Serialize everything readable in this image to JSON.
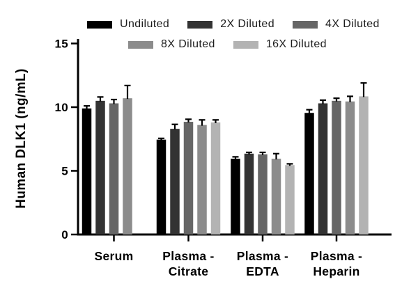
{
  "figure": {
    "background": "#ffffff",
    "axis_color": "#000000"
  },
  "legend": {
    "rows": [
      [
        "Undiluted",
        "2X Diluted",
        "4X Diluted"
      ],
      [
        "8X Diluted",
        "16X Diluted"
      ]
    ]
  },
  "chart_data": {
    "type": "bar",
    "title": "",
    "xlabel": "",
    "ylabel": "Human DLK1 (ng/mL)",
    "ylim": [
      0,
      15
    ],
    "yticks": [
      0,
      5,
      10,
      15
    ],
    "ytick_labels": [
      "0",
      "5",
      "10",
      "15"
    ],
    "grid": false,
    "legend_position": "top",
    "categories": [
      "Serum",
      "Plasma -\nCitrate",
      "Plasma -\nEDTA",
      "Plasma -\nHeparin"
    ],
    "series": [
      {
        "name": "Undiluted",
        "color": "#000000",
        "values": [
          9.9,
          7.45,
          5.95,
          9.55
        ],
        "errors": [
          0.2,
          0.1,
          0.15,
          0.25
        ]
      },
      {
        "name": "2X Diluted",
        "color": "#333333",
        "values": [
          10.5,
          8.3,
          6.35,
          10.3
        ],
        "errors": [
          0.3,
          0.35,
          0.1,
          0.25
        ]
      },
      {
        "name": "4X Diluted",
        "color": "#666666",
        "values": [
          10.3,
          8.85,
          6.3,
          10.5
        ],
        "errors": [
          0.3,
          0.2,
          0.15,
          0.2
        ]
      },
      {
        "name": "8X Diluted",
        "color": "#8c8c8c",
        "values": [
          10.7,
          8.6,
          5.95,
          10.45
        ],
        "errors": [
          1.0,
          0.4,
          0.4,
          0.4
        ]
      },
      {
        "name": "16X Diluted",
        "color": "#b3b3b3",
        "values": [
          null,
          8.8,
          5.45,
          10.85
        ],
        "errors": [
          null,
          0.2,
          0.1,
          1.05
        ]
      }
    ]
  }
}
